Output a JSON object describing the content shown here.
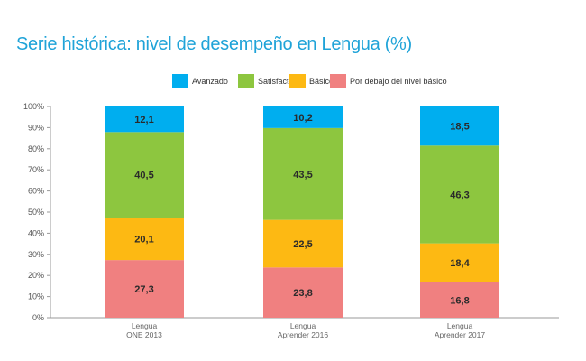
{
  "title": "Serie histórica: nivel de desempeño en Lengua (%)",
  "colors": {
    "avanzado": "#00aeef",
    "satisfactorio": "#8dc63f",
    "basico": "#fdb913",
    "por_debajo": "#f08080",
    "title": "#1fa3d8",
    "axis": "#999999"
  },
  "chart_data": {
    "type": "bar",
    "stacked": true,
    "categories": [
      [
        "Lengua",
        "ONE 2013"
      ],
      [
        "Lengua",
        "Aprender 2016"
      ],
      [
        "Lengua",
        "Aprender 2017"
      ]
    ],
    "series": [
      {
        "name": "Por debajo del nivel básico",
        "key": "por_debajo",
        "values": [
          27.3,
          23.8,
          16.8
        ],
        "labels": [
          "27,3",
          "23,8",
          "16,8"
        ]
      },
      {
        "name": "Básico",
        "key": "basico",
        "values": [
          20.1,
          22.5,
          18.4
        ],
        "labels": [
          "20,1",
          "22,5",
          "18,4"
        ]
      },
      {
        "name": "Satisfactorio",
        "key": "satisfactorio",
        "values": [
          40.5,
          43.5,
          46.3
        ],
        "labels": [
          "40,5",
          "43,5",
          "46,3"
        ]
      },
      {
        "name": "Avanzado",
        "key": "avanzado",
        "values": [
          12.1,
          10.2,
          18.5
        ],
        "labels": [
          "12,1",
          "10,2",
          "18,5"
        ]
      }
    ],
    "legend_order": [
      "Avanzado",
      "Satisfactorio",
      "Básico",
      "Por debajo del nivel básico"
    ],
    "ylim": [
      0,
      100
    ],
    "yticks": [
      "0%",
      "10%",
      "20%",
      "30%",
      "40%",
      "50%",
      "60%",
      "70%",
      "80%",
      "90%",
      "100%"
    ],
    "legend_position": "top-center",
    "grid": false
  }
}
